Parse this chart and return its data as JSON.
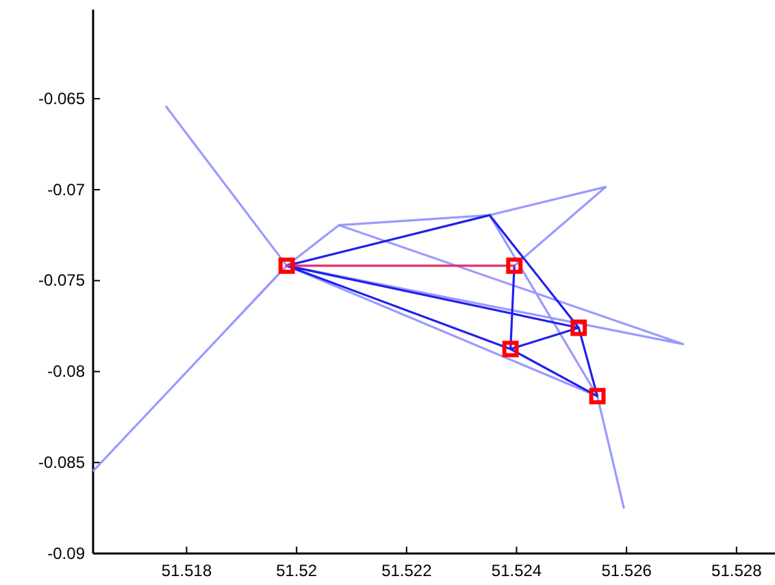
{
  "chart_data": {
    "type": "line",
    "xlim": [
      51.5163,
      51.5287
    ],
    "ylim": [
      -0.09,
      -0.0601
    ],
    "xticks": [
      51.518,
      51.52,
      51.522,
      51.524,
      51.526,
      51.528
    ],
    "yticks": [
      -0.065,
      -0.07,
      -0.075,
      -0.08,
      -0.085,
      -0.09
    ],
    "grid": false,
    "marker": "none",
    "line_style": "solid",
    "series": [
      {
        "color": "#9a9aff",
        "x": [
          51.51763,
          51.51982,
          51.51631
        ],
        "values": [
          -0.06544,
          -0.07418,
          -0.08544
        ]
      },
      {
        "color": "#9a9aff",
        "x": [
          51.5188,
          51.51982,
          51.52077,
          51.52351,
          51.52562,
          51.52396
        ],
        "values": [
          -0.07745,
          -0.07418,
          -0.07195,
          -0.0714,
          -0.06985,
          -0.07418
        ]
      },
      {
        "color": "#9a9aff",
        "x": [
          51.52077,
          51.52703,
          51.51982
        ],
        "values": [
          -0.07195,
          -0.07849,
          -0.07418
        ]
      },
      {
        "color": "#9a9aff",
        "x": [
          51.51982,
          51.52547,
          51.52351
        ],
        "values": [
          -0.07418,
          -0.08135,
          -0.0714
        ]
      },
      {
        "color": "#9a9aff",
        "x": [
          51.52547,
          51.52595
        ],
        "values": [
          -0.08135,
          -0.08748
        ]
      },
      {
        "color": "#2020ee",
        "x": [
          51.51982,
          51.52351,
          51.52513,
          51.52547,
          51.52389,
          51.51982,
          51.52513,
          51.52389,
          51.52396
        ],
        "values": [
          -0.07418,
          -0.0714,
          -0.07759,
          -0.08135,
          -0.07876,
          -0.07418,
          -0.07759,
          -0.07876,
          -0.07418
        ]
      },
      {
        "color": "#e0306a",
        "x": [
          51.51982,
          51.52396
        ],
        "values": [
          -0.07418,
          -0.07418
        ]
      },
      {
        "type": "scatter",
        "marker": "square",
        "color": "#ff0000",
        "x": [
          51.51982,
          51.52396,
          51.52513,
          51.52389,
          51.52547
        ],
        "values": [
          -0.07418,
          -0.07418,
          -0.07759,
          -0.07876,
          -0.08135
        ]
      }
    ]
  }
}
